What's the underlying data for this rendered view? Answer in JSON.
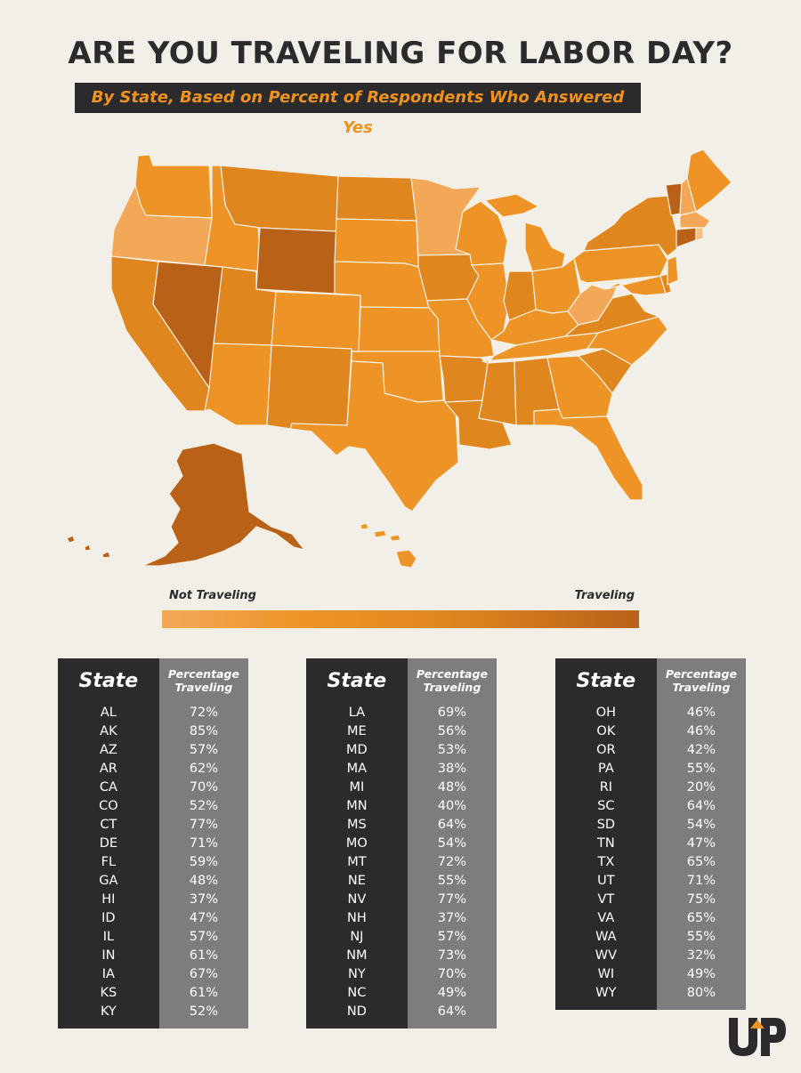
{
  "title": "ARE YOU TRAVELING FOR LABOR DAY?",
  "subtitle": "By State, Based on Percent of Respondents Who Answered Yes",
  "legend": {
    "low_label": "Not Traveling",
    "high_label": "Traveling",
    "low_color": "#f3a858",
    "high_color": "#b96117"
  },
  "colors": {
    "background": "#f1efe7",
    "dark": "#2b2a2c",
    "gray": "#7d7d80",
    "accent": "#f0931e"
  },
  "table_headers": {
    "state": "State",
    "pct_line1": "Percentage",
    "pct_line2": "Traveling"
  },
  "tables": [
    [
      {
        "state": "AL",
        "pct": "72%"
      },
      {
        "state": "AK",
        "pct": "85%"
      },
      {
        "state": "AZ",
        "pct": "57%"
      },
      {
        "state": "AR",
        "pct": "62%"
      },
      {
        "state": "CA",
        "pct": "70%"
      },
      {
        "state": "CO",
        "pct": "52%"
      },
      {
        "state": "CT",
        "pct": "77%"
      },
      {
        "state": "DE",
        "pct": "71%"
      },
      {
        "state": "FL",
        "pct": "59%"
      },
      {
        "state": "GA",
        "pct": "48%"
      },
      {
        "state": "HI",
        "pct": "37%"
      },
      {
        "state": "ID",
        "pct": "47%"
      },
      {
        "state": "IL",
        "pct": "57%"
      },
      {
        "state": "IN",
        "pct": "61%"
      },
      {
        "state": "IA",
        "pct": "67%"
      },
      {
        "state": "KS",
        "pct": "61%"
      },
      {
        "state": "KY",
        "pct": "52%"
      }
    ],
    [
      {
        "state": "LA",
        "pct": "69%"
      },
      {
        "state": "ME",
        "pct": "56%"
      },
      {
        "state": "MD",
        "pct": "53%"
      },
      {
        "state": "MA",
        "pct": "38%"
      },
      {
        "state": "MI",
        "pct": "48%"
      },
      {
        "state": "MN",
        "pct": "40%"
      },
      {
        "state": "MS",
        "pct": "64%"
      },
      {
        "state": "MO",
        "pct": "54%"
      },
      {
        "state": "MT",
        "pct": "72%"
      },
      {
        "state": "NE",
        "pct": "55%"
      },
      {
        "state": "NV",
        "pct": "77%"
      },
      {
        "state": "NH",
        "pct": "37%"
      },
      {
        "state": "NJ",
        "pct": "57%"
      },
      {
        "state": "NM",
        "pct": "73%"
      },
      {
        "state": "NY",
        "pct": "70%"
      },
      {
        "state": "NC",
        "pct": "49%"
      },
      {
        "state": "ND",
        "pct": "64%"
      }
    ],
    [
      {
        "state": "OH",
        "pct": "46%"
      },
      {
        "state": "OK",
        "pct": "46%"
      },
      {
        "state": "OR",
        "pct": "42%"
      },
      {
        "state": "PA",
        "pct": "55%"
      },
      {
        "state": "RI",
        "pct": "20%"
      },
      {
        "state": "SC",
        "pct": "64%"
      },
      {
        "state": "SD",
        "pct": "54%"
      },
      {
        "state": "TN",
        "pct": "47%"
      },
      {
        "state": "TX",
        "pct": "65%"
      },
      {
        "state": "UT",
        "pct": "71%"
      },
      {
        "state": "VT",
        "pct": "75%"
      },
      {
        "state": "VA",
        "pct": "65%"
      },
      {
        "state": "WA",
        "pct": "55%"
      },
      {
        "state": "WV",
        "pct": "32%"
      },
      {
        "state": "WI",
        "pct": "49%"
      },
      {
        "state": "WY",
        "pct": "80%"
      }
    ]
  ],
  "logo_text": "UP"
}
